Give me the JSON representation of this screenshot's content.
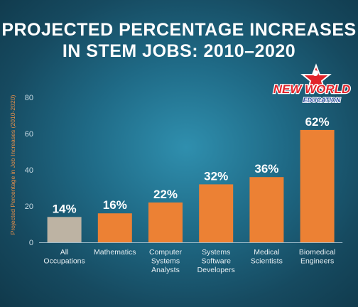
{
  "title_lines": [
    "PROJECTED PERCENTAGE INCREASES",
    "IN STEM JOBS: 2010–2020"
  ],
  "logo": {
    "line1": "NEW WORLD",
    "line2": "EDUCATION"
  },
  "colors": {
    "highlight_bar": "#ec8134",
    "baseline_bar": "#bdb3a3",
    "axis_text": "#c9dbe4",
    "ylabel_text": "#e8904a",
    "bar_label": "#ffffff",
    "logo_red": "#e2232a",
    "logo_blue": "#2d4fa3"
  },
  "chart_data": {
    "type": "bar",
    "title": "PROJECTED PERCENTAGE INCREASES IN STEM JOBS: 2010–2020",
    "xlabel": "",
    "ylabel": "Projected Percentage in Job Increases (2010-2020)",
    "categories": [
      [
        "All",
        "Occupations"
      ],
      [
        "Mathematics"
      ],
      [
        "Computer",
        "Systems",
        "Analysts"
      ],
      [
        "Systems",
        "Software",
        "Developers"
      ],
      [
        "Medical",
        "Scientists"
      ],
      [
        "Biomedical",
        "Engineers"
      ]
    ],
    "values": [
      14,
      16,
      22,
      32,
      36,
      62
    ],
    "value_labels": [
      "14%",
      "16%",
      "22%",
      "32%",
      "36%",
      "62%"
    ],
    "ylim": [
      0,
      80
    ],
    "yticks": [
      0,
      20,
      40,
      60,
      80
    ],
    "grid": false,
    "legend": "none"
  }
}
